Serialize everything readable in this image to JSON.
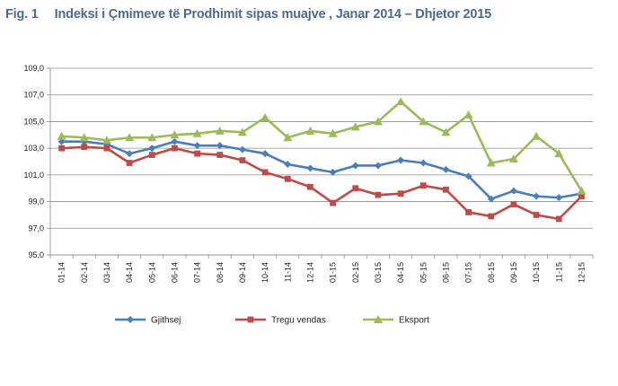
{
  "figure": {
    "label": "Fig. 1",
    "title": "Indeksi i Çmimeve të Prodhimit sipas muajve , Janar 2014 – Dhjetor 2015"
  },
  "chart_data": {
    "type": "line",
    "title": "Indeksi i Çmimeve të Prodhimit sipas muajve , Janar 2014 – Dhjetor 2015",
    "xlabel": "",
    "ylabel": "",
    "ylim": [
      95.0,
      109.0
    ],
    "yticks": [
      "95,0",
      "97,0",
      "99,0",
      "101,0",
      "103,0",
      "105,0",
      "107,0",
      "109,0"
    ],
    "grid": "horizontal",
    "legend_position": "bottom",
    "categories": [
      "01-14",
      "02-14",
      "03-14",
      "04-14",
      "05-14",
      "06-14",
      "07-14",
      "08-14",
      "09-14",
      "10-14",
      "11-14",
      "12-14",
      "01-15",
      "02-15",
      "03-15",
      "04-15",
      "05-15",
      "06-15",
      "07-15",
      "08-15",
      "09-15",
      "10-15",
      "11-15",
      "12-15"
    ],
    "series": [
      {
        "name": "Gjithsej",
        "color": "#4a7ebb",
        "marker": "diamond",
        "values": [
          103.5,
          103.5,
          103.3,
          102.6,
          103.0,
          103.5,
          103.2,
          103.2,
          102.9,
          102.6,
          101.8,
          101.5,
          101.2,
          101.7,
          101.7,
          102.1,
          101.9,
          101.4,
          100.9,
          99.2,
          99.8,
          99.4,
          99.3,
          99.6
        ]
      },
      {
        "name": "Tregu vendas",
        "color": "#be4b48",
        "marker": "square",
        "values": [
          103.0,
          103.1,
          103.0,
          101.9,
          102.5,
          103.0,
          102.6,
          102.5,
          102.1,
          101.2,
          100.7,
          100.1,
          98.9,
          100.0,
          99.5,
          99.6,
          100.2,
          99.9,
          98.2,
          97.9,
          98.8,
          98.0,
          97.7,
          99.4
        ]
      },
      {
        "name": "Eksport",
        "color": "#9bbb59",
        "marker": "triangle",
        "values": [
          103.9,
          103.8,
          103.6,
          103.8,
          103.8,
          104.0,
          104.1,
          104.3,
          104.2,
          105.3,
          103.8,
          104.3,
          104.1,
          104.6,
          105.0,
          106.5,
          105.0,
          104.2,
          105.5,
          101.9,
          102.2,
          103.9,
          102.6,
          99.8
        ]
      }
    ]
  }
}
